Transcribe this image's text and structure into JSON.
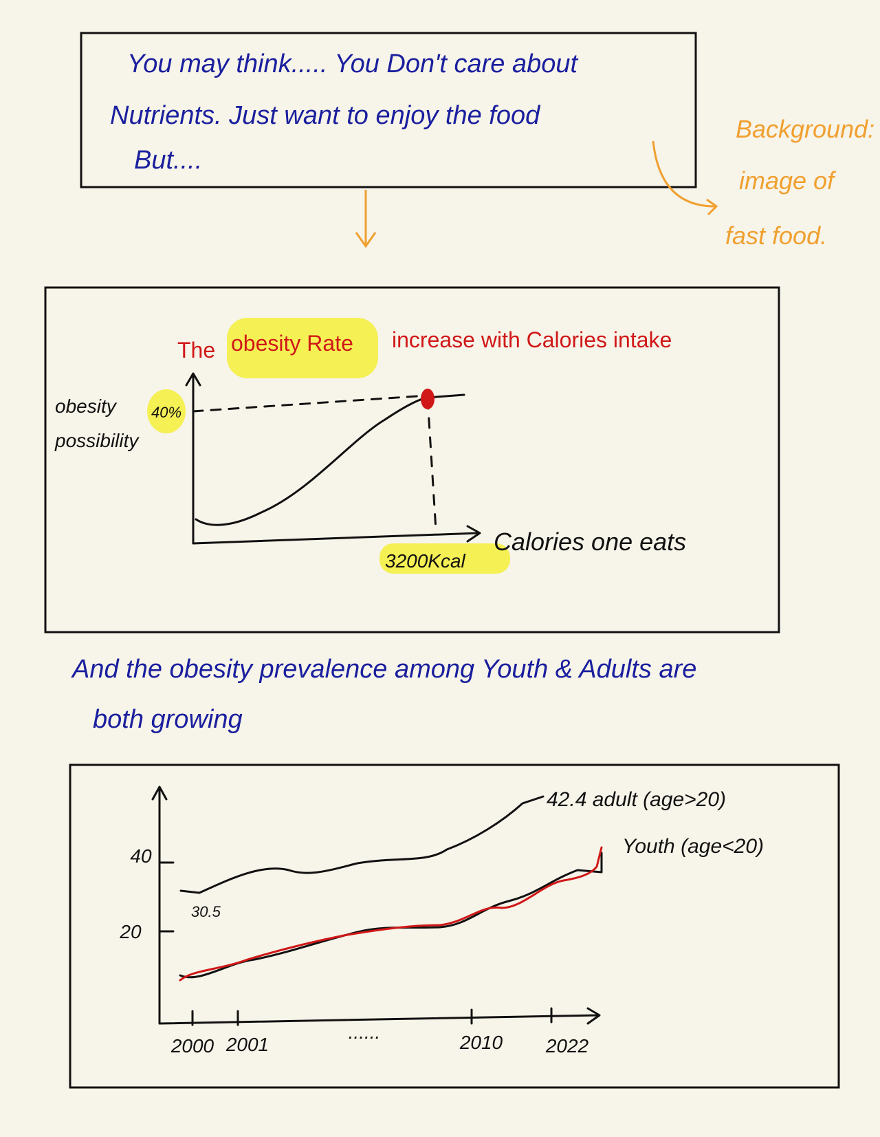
{
  "note_box": {
    "lines": [
      "You may think..... You Don't care about",
      "Nutrients. Just want to enjoy the food",
      "But...."
    ]
  },
  "side_note": {
    "lines": [
      "Background:",
      "image of",
      "fast food."
    ]
  },
  "chart_1": {
    "title_parts": [
      "The",
      "obesity Rate",
      "increase with Calories intake"
    ],
    "y_label": [
      "obesity",
      "possibility"
    ],
    "y_marker": "40%",
    "x_marker": "3200Kcal",
    "x_label": "Calories one eats"
  },
  "caption": {
    "lines": [
      "And the obesity prevalence among Youth & Adults are",
      "both growing"
    ]
  },
  "chart_2": {
    "yticks": [
      "40",
      "20"
    ],
    "xticks": [
      "2000",
      "2001",
      "......",
      "2010",
      "2022"
    ],
    "start_label": "30.5",
    "adult_label": "42.4 adult (age>20)",
    "youth_label": "Youth (age<20)"
  }
}
